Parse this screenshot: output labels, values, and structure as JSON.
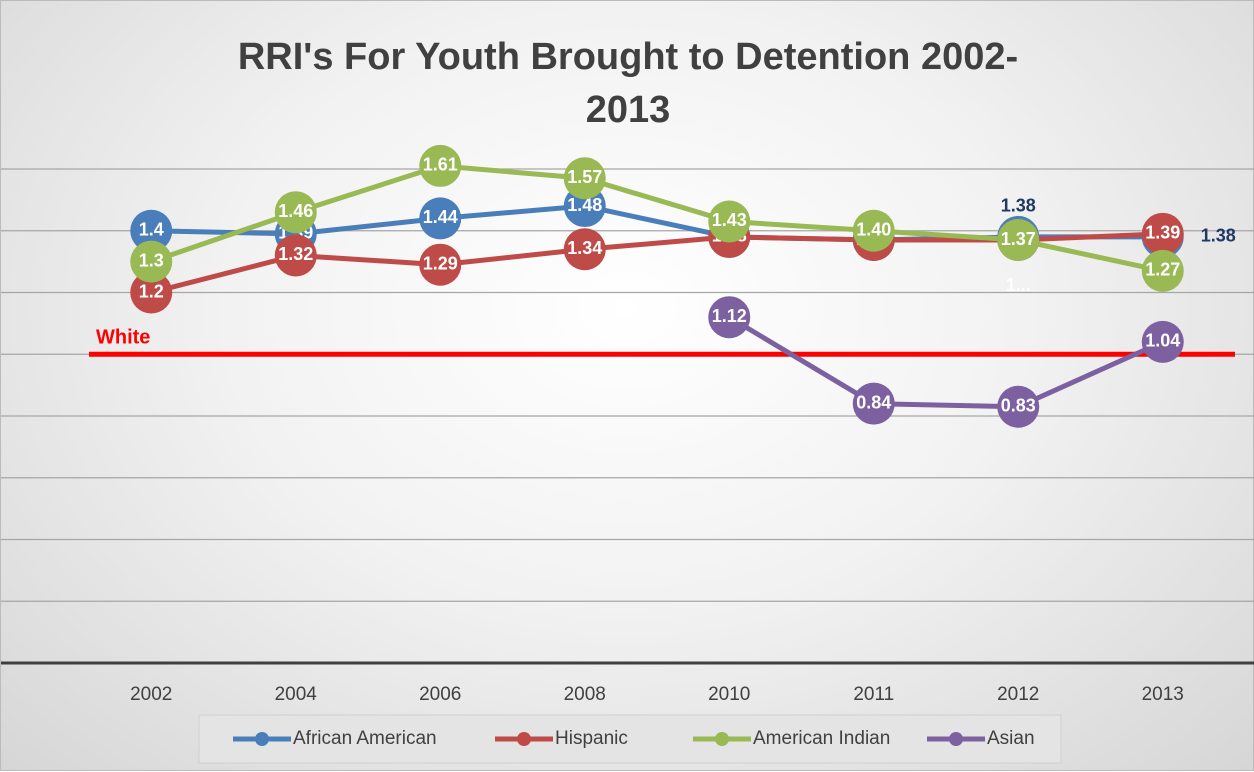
{
  "chart_data": {
    "type": "line",
    "title": "RRI's For Youth Brought to Detention 2002-2013",
    "categories": [
      "2002",
      "2004",
      "2006",
      "2008",
      "2010",
      "2011",
      "2012",
      "2013"
    ],
    "series": [
      {
        "name": "African American",
        "color": "#4a7ebb",
        "values": [
          1.4,
          1.39,
          1.44,
          1.48,
          1.38,
          1.37,
          1.38,
          1.38
        ]
      },
      {
        "name": "Hispanic",
        "color": "#be4b48",
        "values": [
          1.2,
          1.32,
          1.29,
          1.34,
          1.38,
          1.37,
          1.37,
          1.39
        ],
        "value_labels": [
          "1.2",
          "1.32",
          "1.29",
          "1.34",
          "1.38",
          "1.37",
          "1...",
          "1.39"
        ]
      },
      {
        "name": "American Indian",
        "color": "#98b954",
        "values": [
          1.3,
          1.46,
          1.61,
          1.57,
          1.43,
          1.4,
          1.37,
          1.27
        ],
        "value_labels": [
          "1.3",
          "1.46",
          "1.61",
          "1.57",
          "1.43",
          "1.40",
          "1.37",
          "1.27"
        ]
      },
      {
        "name": "Asian",
        "color": "#7d60a0",
        "values": [
          null,
          null,
          null,
          null,
          1.12,
          0.84,
          0.83,
          1.04
        ]
      }
    ],
    "reference_line": {
      "label": "White",
      "value": 1,
      "color": "#ff0000"
    },
    "ylim": [
      0,
      1.6
    ],
    "yticks": [
      0,
      0.2,
      0.4,
      0.6,
      0.8,
      1,
      1.2,
      1.4,
      1.6
    ],
    "grid": true,
    "legend": "bottom"
  }
}
